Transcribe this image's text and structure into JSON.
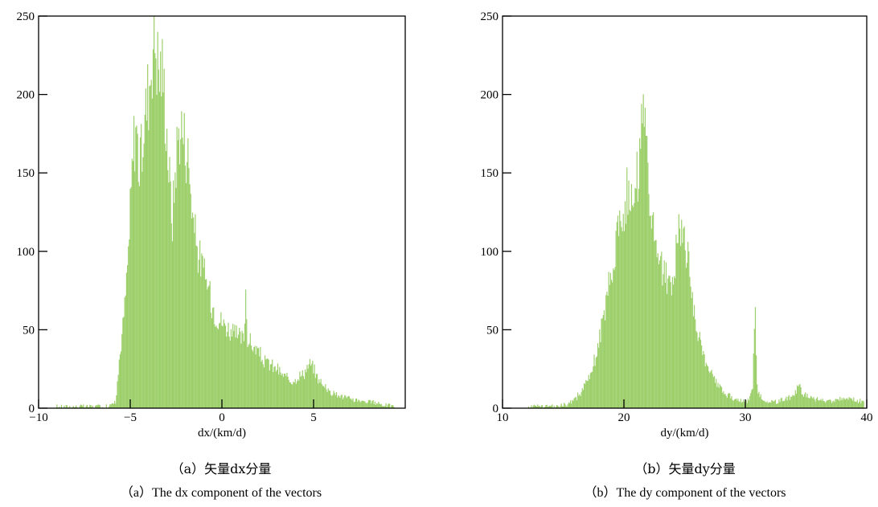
{
  "chart_data": [
    {
      "type": "bar",
      "xlabel": "dx/(km/d)",
      "ylabel": "",
      "xlim": [
        -10,
        10
      ],
      "ylim": [
        0,
        250
      ],
      "x_ticks": [
        -10,
        -5,
        0,
        5
      ],
      "y_ticks": [
        0,
        50,
        100,
        150,
        200,
        250
      ],
      "bar_color": "#9ccf6a",
      "grid": false,
      "bin_width": 0.05,
      "x": [
        -9.0,
        -8.0,
        -7.0,
        -6.4,
        -6.0,
        -5.8,
        -5.7,
        -5.6,
        -5.5,
        -5.4,
        -5.3,
        -5.2,
        -5.1,
        -5.0,
        -4.9,
        -4.8,
        -4.7,
        -4.6,
        -4.5,
        -4.4,
        -4.3,
        -4.2,
        -4.1,
        -4.0,
        -3.9,
        -3.8,
        -3.7,
        -3.6,
        -3.5,
        -3.4,
        -3.3,
        -3.2,
        -3.1,
        -3.0,
        -2.9,
        -2.8,
        -2.7,
        -2.6,
        -2.5,
        -2.4,
        -2.3,
        -2.2,
        -2.1,
        -2.0,
        -1.9,
        -1.8,
        -1.7,
        -1.6,
        -1.5,
        -1.4,
        -1.3,
        -1.2,
        -1.1,
        -1.0,
        -0.9,
        -0.8,
        -0.7,
        -0.6,
        -0.5,
        -0.4,
        -0.3,
        -0.2,
        -0.1,
        0.0,
        0.2,
        0.4,
        0.6,
        0.8,
        1.0,
        1.2,
        1.3,
        1.4,
        1.6,
        1.8,
        2.0,
        2.3,
        2.6,
        3.0,
        3.4,
        3.8,
        4.2,
        4.5,
        4.8,
        5.0,
        5.2,
        5.5,
        6.0,
        6.5,
        7.0,
        7.5,
        8.0,
        8.5,
        9.0,
        9.4
      ],
      "values": [
        1,
        1,
        1,
        1,
        2,
        5,
        15,
        30,
        40,
        52,
        65,
        80,
        100,
        125,
        150,
        170,
        182,
        170,
        150,
        160,
        175,
        185,
        195,
        205,
        215,
        228,
        242,
        232,
        220,
        215,
        218,
        210,
        195,
        175,
        155,
        135,
        120,
        140,
        160,
        172,
        180,
        178,
        175,
        170,
        165,
        155,
        140,
        125,
        115,
        105,
        100,
        95,
        90,
        88,
        82,
        80,
        75,
        70,
        65,
        62,
        60,
        58,
        56,
        55,
        53,
        50,
        48,
        46,
        45,
        44,
        75,
        45,
        40,
        38,
        35,
        30,
        28,
        25,
        20,
        18,
        20,
        23,
        28,
        25,
        20,
        15,
        10,
        8,
        6,
        5,
        4,
        3,
        2,
        1
      ]
    },
    {
      "type": "bar",
      "xlabel": "dy/(km/d)",
      "ylabel": "",
      "xlim": [
        10,
        40
      ],
      "ylim": [
        0,
        250
      ],
      "x_ticks": [
        10,
        20,
        30,
        40
      ],
      "y_ticks": [
        0,
        50,
        100,
        150,
        200,
        250
      ],
      "bar_color": "#9ccf6a",
      "grid": false,
      "bin_width": 0.075,
      "x": [
        12.0,
        14.0,
        15.0,
        15.5,
        16.0,
        16.5,
        17.0,
        17.5,
        18.0,
        18.5,
        19.0,
        19.5,
        20.0,
        20.3,
        20.6,
        21.0,
        21.3,
        21.5,
        21.8,
        22.0,
        22.3,
        22.6,
        23.0,
        23.3,
        23.6,
        24.0,
        24.3,
        24.6,
        25.0,
        25.3,
        25.6,
        26.0,
        26.5,
        27.0,
        27.5,
        28.0,
        28.5,
        29.0,
        29.5,
        30.0,
        30.3,
        30.6,
        30.8,
        31.0,
        31.5,
        32.0,
        32.5,
        33.0,
        33.5,
        34.0,
        34.4,
        34.8,
        35.5,
        36.0,
        37.0,
        38.0,
        39.0,
        39.8
      ],
      "values": [
        1,
        1,
        2,
        3,
        6,
        10,
        18,
        28,
        45,
        65,
        90,
        115,
        130,
        140,
        138,
        145,
        160,
        190,
        165,
        140,
        120,
        100,
        92,
        88,
        78,
        82,
        100,
        112,
        105,
        92,
        70,
        50,
        35,
        25,
        18,
        12,
        8,
        6,
        5,
        4,
        5,
        15,
        68,
        10,
        5,
        4,
        4,
        5,
        6,
        8,
        14,
        9,
        7,
        6,
        5,
        6,
        5,
        4
      ]
    }
  ],
  "captions": [
    {
      "zh": "（a）矢量dx分量",
      "en": "（a）The dx component of the vectors"
    },
    {
      "zh": "（b）矢量dy分量",
      "en": "（b）The dy component of the vectors"
    }
  ]
}
